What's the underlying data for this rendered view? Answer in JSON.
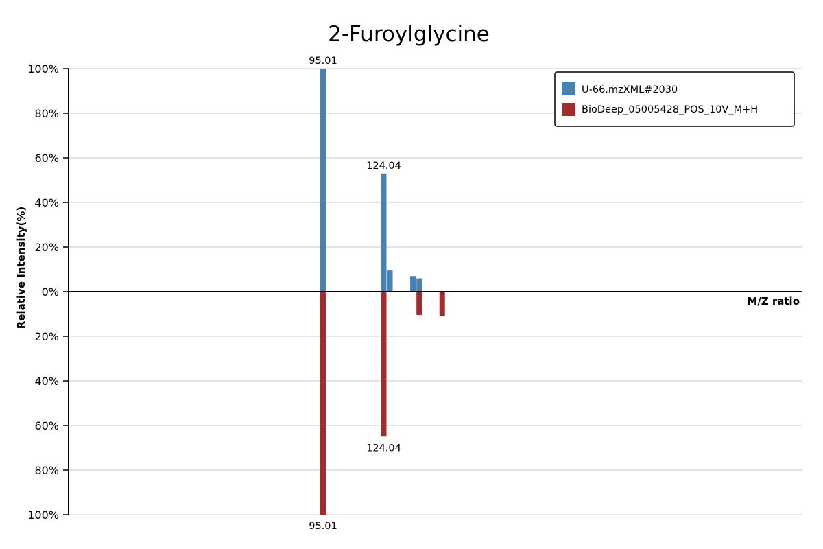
{
  "chart_data": {
    "type": "bar",
    "title": "2-Furoylglycine",
    "xlabel": "M/Z ratio",
    "ylabel": "Relative Intensity(%)",
    "ylim_top": [
      0,
      100
    ],
    "ylim_bottom": [
      0,
      100
    ],
    "y_ticks_top": [
      "100%",
      "80%",
      "60%",
      "40%",
      "20%",
      "0%"
    ],
    "y_ticks_bottom": [
      "20%",
      "40%",
      "60%",
      "80%",
      "100%"
    ],
    "grid": true,
    "legend_position": "top-right",
    "series": [
      {
        "name": "U-66.mzXML#2030",
        "color": "#4682b4",
        "direction": "up",
        "peaks": [
          {
            "mz": 95.01,
            "intensity": 100,
            "label": "95.01"
          },
          {
            "mz": 124.04,
            "intensity": 53,
            "label": "124.04"
          },
          {
            "mz": 127.0,
            "intensity": 9.5
          },
          {
            "mz": 138.0,
            "intensity": 7
          },
          {
            "mz": 141.0,
            "intensity": 6
          }
        ]
      },
      {
        "name": "BioDeep_05005428_POS_10V_M+H",
        "color": "#a52a2a",
        "direction": "down",
        "peaks": [
          {
            "mz": 95.01,
            "intensity": 100,
            "label": "95.01"
          },
          {
            "mz": 124.04,
            "intensity": 65,
            "label": "124.04"
          },
          {
            "mz": 141.0,
            "intensity": 10.5
          },
          {
            "mz": 152.0,
            "intensity": 11
          }
        ]
      }
    ]
  }
}
